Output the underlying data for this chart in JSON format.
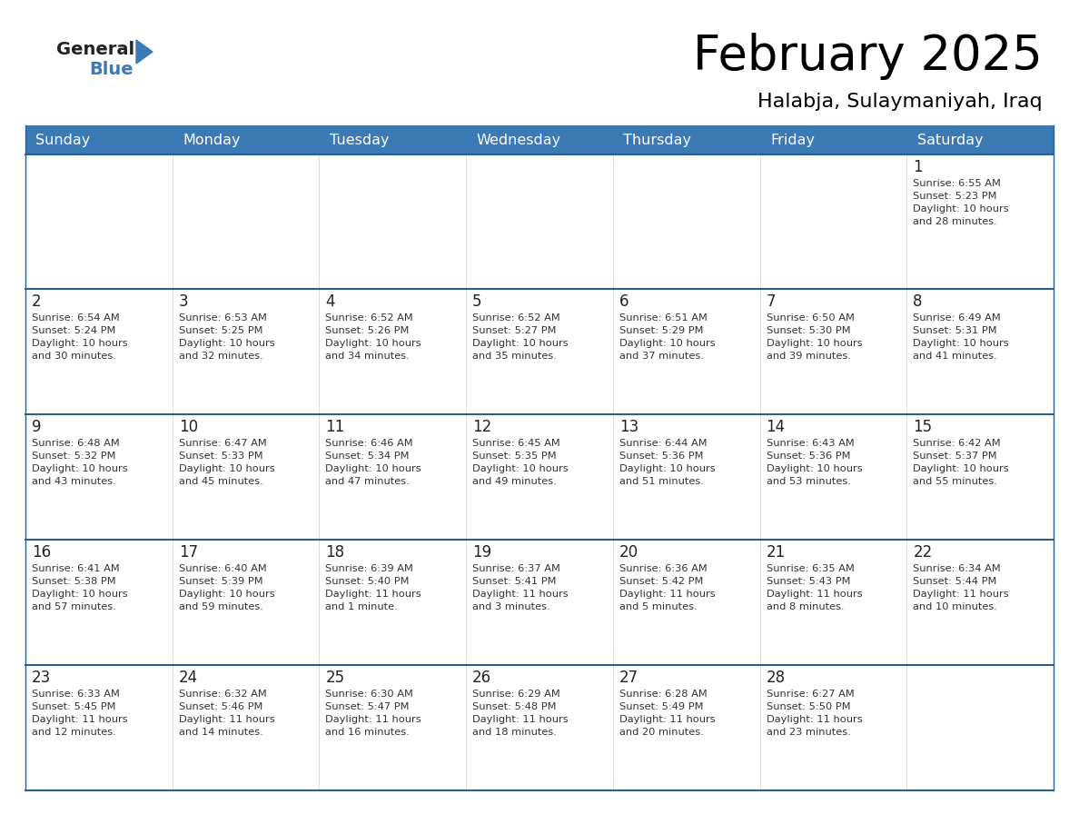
{
  "title": "February 2025",
  "subtitle": "Halabja, Sulaymaniyah, Iraq",
  "header_color": "#3c7ab5",
  "header_text_color": "#ffffff",
  "border_color": "#2a5f8f",
  "days_of_week": [
    "Sunday",
    "Monday",
    "Tuesday",
    "Wednesday",
    "Thursday",
    "Friday",
    "Saturday"
  ],
  "calendar": [
    [
      null,
      null,
      null,
      null,
      null,
      null,
      1
    ],
    [
      2,
      3,
      4,
      5,
      6,
      7,
      8
    ],
    [
      9,
      10,
      11,
      12,
      13,
      14,
      15
    ],
    [
      16,
      17,
      18,
      19,
      20,
      21,
      22
    ],
    [
      23,
      24,
      25,
      26,
      27,
      28,
      null
    ]
  ],
  "day_data": {
    "1": {
      "sunrise": "6:55 AM",
      "sunset": "5:23 PM",
      "daylight_line1": "Daylight: 10 hours",
      "daylight_line2": "and 28 minutes."
    },
    "2": {
      "sunrise": "6:54 AM",
      "sunset": "5:24 PM",
      "daylight_line1": "Daylight: 10 hours",
      "daylight_line2": "and 30 minutes."
    },
    "3": {
      "sunrise": "6:53 AM",
      "sunset": "5:25 PM",
      "daylight_line1": "Daylight: 10 hours",
      "daylight_line2": "and 32 minutes."
    },
    "4": {
      "sunrise": "6:52 AM",
      "sunset": "5:26 PM",
      "daylight_line1": "Daylight: 10 hours",
      "daylight_line2": "and 34 minutes."
    },
    "5": {
      "sunrise": "6:52 AM",
      "sunset": "5:27 PM",
      "daylight_line1": "Daylight: 10 hours",
      "daylight_line2": "and 35 minutes."
    },
    "6": {
      "sunrise": "6:51 AM",
      "sunset": "5:29 PM",
      "daylight_line1": "Daylight: 10 hours",
      "daylight_line2": "and 37 minutes."
    },
    "7": {
      "sunrise": "6:50 AM",
      "sunset": "5:30 PM",
      "daylight_line1": "Daylight: 10 hours",
      "daylight_line2": "and 39 minutes."
    },
    "8": {
      "sunrise": "6:49 AM",
      "sunset": "5:31 PM",
      "daylight_line1": "Daylight: 10 hours",
      "daylight_line2": "and 41 minutes."
    },
    "9": {
      "sunrise": "6:48 AM",
      "sunset": "5:32 PM",
      "daylight_line1": "Daylight: 10 hours",
      "daylight_line2": "and 43 minutes."
    },
    "10": {
      "sunrise": "6:47 AM",
      "sunset": "5:33 PM",
      "daylight_line1": "Daylight: 10 hours",
      "daylight_line2": "and 45 minutes."
    },
    "11": {
      "sunrise": "6:46 AM",
      "sunset": "5:34 PM",
      "daylight_line1": "Daylight: 10 hours",
      "daylight_line2": "and 47 minutes."
    },
    "12": {
      "sunrise": "6:45 AM",
      "sunset": "5:35 PM",
      "daylight_line1": "Daylight: 10 hours",
      "daylight_line2": "and 49 minutes."
    },
    "13": {
      "sunrise": "6:44 AM",
      "sunset": "5:36 PM",
      "daylight_line1": "Daylight: 10 hours",
      "daylight_line2": "and 51 minutes."
    },
    "14": {
      "sunrise": "6:43 AM",
      "sunset": "5:36 PM",
      "daylight_line1": "Daylight: 10 hours",
      "daylight_line2": "and 53 minutes."
    },
    "15": {
      "sunrise": "6:42 AM",
      "sunset": "5:37 PM",
      "daylight_line1": "Daylight: 10 hours",
      "daylight_line2": "and 55 minutes."
    },
    "16": {
      "sunrise": "6:41 AM",
      "sunset": "5:38 PM",
      "daylight_line1": "Daylight: 10 hours",
      "daylight_line2": "and 57 minutes."
    },
    "17": {
      "sunrise": "6:40 AM",
      "sunset": "5:39 PM",
      "daylight_line1": "Daylight: 10 hours",
      "daylight_line2": "and 59 minutes."
    },
    "18": {
      "sunrise": "6:39 AM",
      "sunset": "5:40 PM",
      "daylight_line1": "Daylight: 11 hours",
      "daylight_line2": "and 1 minute."
    },
    "19": {
      "sunrise": "6:37 AM",
      "sunset": "5:41 PM",
      "daylight_line1": "Daylight: 11 hours",
      "daylight_line2": "and 3 minutes."
    },
    "20": {
      "sunrise": "6:36 AM",
      "sunset": "5:42 PM",
      "daylight_line1": "Daylight: 11 hours",
      "daylight_line2": "and 5 minutes."
    },
    "21": {
      "sunrise": "6:35 AM",
      "sunset": "5:43 PM",
      "daylight_line1": "Daylight: 11 hours",
      "daylight_line2": "and 8 minutes."
    },
    "22": {
      "sunrise": "6:34 AM",
      "sunset": "5:44 PM",
      "daylight_line1": "Daylight: 11 hours",
      "daylight_line2": "and 10 minutes."
    },
    "23": {
      "sunrise": "6:33 AM",
      "sunset": "5:45 PM",
      "daylight_line1": "Daylight: 11 hours",
      "daylight_line2": "and 12 minutes."
    },
    "24": {
      "sunrise": "6:32 AM",
      "sunset": "5:46 PM",
      "daylight_line1": "Daylight: 11 hours",
      "daylight_line2": "and 14 minutes."
    },
    "25": {
      "sunrise": "6:30 AM",
      "sunset": "5:47 PM",
      "daylight_line1": "Daylight: 11 hours",
      "daylight_line2": "and 16 minutes."
    },
    "26": {
      "sunrise": "6:29 AM",
      "sunset": "5:48 PM",
      "daylight_line1": "Daylight: 11 hours",
      "daylight_line2": "and 18 minutes."
    },
    "27": {
      "sunrise": "6:28 AM",
      "sunset": "5:49 PM",
      "daylight_line1": "Daylight: 11 hours",
      "daylight_line2": "and 20 minutes."
    },
    "28": {
      "sunrise": "6:27 AM",
      "sunset": "5:50 PM",
      "daylight_line1": "Daylight: 11 hours",
      "daylight_line2": "and 23 minutes."
    }
  }
}
